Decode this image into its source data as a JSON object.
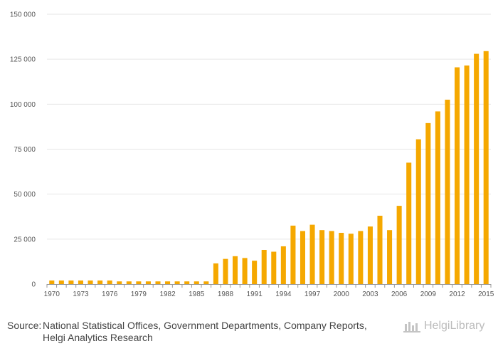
{
  "chart_data": {
    "type": "bar",
    "title": "",
    "xlabel": "",
    "ylabel": "",
    "ylim": [
      0,
      150000
    ],
    "yticks": [
      0,
      25000,
      50000,
      75000,
      100000,
      125000,
      150000
    ],
    "ytick_labels": [
      "0",
      "25 000",
      "50 000",
      "75 000",
      "100 000",
      "125 000",
      "150 000"
    ],
    "categories": [
      "1970",
      "1971",
      "1972",
      "1973",
      "1974",
      "1975",
      "1976",
      "1977",
      "1978",
      "1979",
      "1980",
      "1981",
      "1982",
      "1983",
      "1984",
      "1985",
      "1986",
      "1987",
      "1988",
      "1989",
      "1990",
      "1991",
      "1992",
      "1993",
      "1994",
      "1995",
      "1996",
      "1997",
      "1998",
      "1999",
      "2000",
      "2001",
      "2002",
      "2003",
      "2004",
      "2005",
      "2006",
      "2007",
      "2008",
      "2009",
      "2010",
      "2011",
      "2012",
      "2013",
      "2014",
      "2015"
    ],
    "xtick_labels": [
      "1970",
      "1973",
      "1976",
      "1979",
      "1982",
      "1985",
      "1988",
      "1991",
      "1994",
      "1997",
      "2000",
      "2003",
      "2006",
      "2009",
      "2012",
      "2015"
    ],
    "values": [
      2000,
      2000,
      2000,
      2000,
      2000,
      2000,
      2000,
      1500,
      1500,
      1500,
      1500,
      1500,
      1500,
      1500,
      1500,
      1500,
      1500,
      11500,
      14000,
      15500,
      14500,
      13000,
      19000,
      18000,
      21000,
      32500,
      29500,
      33000,
      30000,
      29500,
      28500,
      28000,
      29500,
      32000,
      38000,
      30000,
      43500,
      67500,
      80500,
      89500,
      96000,
      102500,
      120500,
      121500,
      128000,
      129500
    ],
    "color": "#f5a800"
  },
  "footer": {
    "source_label": "Source:",
    "source_line1": "National Statistical Offices, Government Departments, Company Reports,",
    "source_line2": "Helgi Analytics Research",
    "brand_name": "HelgiLibrary"
  }
}
